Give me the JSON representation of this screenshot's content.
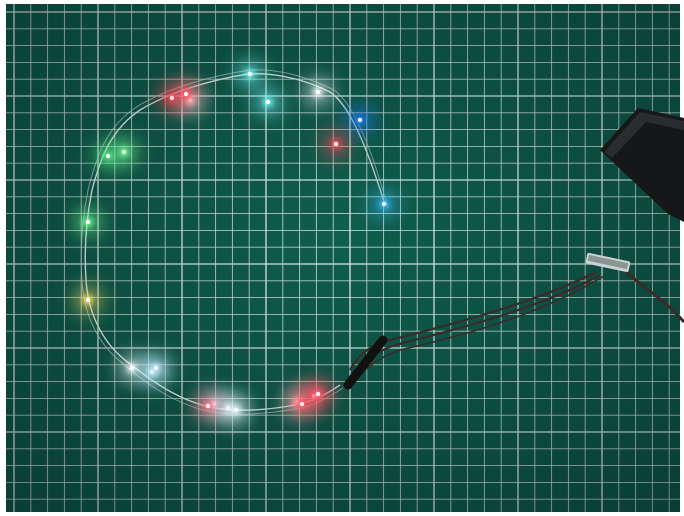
{
  "scene": {
    "colors": {
      "mat": "#0f5e4e",
      "mat_dark": "#0a463b",
      "grid": "#d8ece5",
      "border": "#ffffff",
      "wire": "#b9c8c4",
      "cable": "#3a2a2a",
      "battery_box": "#151718"
    },
    "leds": [
      {
        "color": "#7dfbff"
      },
      {
        "color": "#7dfbff"
      },
      {
        "color": "#ffffff"
      },
      {
        "color": "#1f7cff"
      },
      {
        "color": "#ff4a5a"
      },
      {
        "color": "#3cbcff"
      },
      {
        "color": "#ffffff"
      },
      {
        "color": "#ff3b4e"
      },
      {
        "color": "#ff4a5a"
      },
      {
        "color": "#ffffff"
      },
      {
        "color": "#ff4a5a"
      },
      {
        "color": "#e9ffff"
      },
      {
        "color": "#7aff9a"
      },
      {
        "color": "#5cf08a"
      },
      {
        "color": "#7aff9a"
      },
      {
        "color": "#ffe16a"
      },
      {
        "color": "#ffffff"
      },
      {
        "color": "#bff6ff"
      },
      {
        "color": "#cfe8ff"
      },
      {
        "color": "#ff6b7a"
      },
      {
        "color": "#e8f8ff"
      },
      {
        "color": "#bfe6ff"
      },
      {
        "color": "#ff4657"
      },
      {
        "color": "#ff5a6a"
      }
    ]
  }
}
